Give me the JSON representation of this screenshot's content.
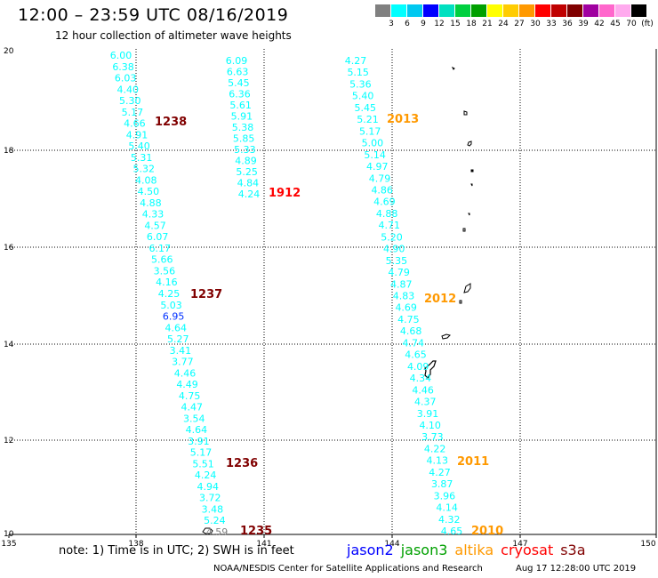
{
  "header": {
    "title": "12:00 – 23:59 UTC 08/16/2019",
    "subtitle": "12 hour collection of altimeter wave heights"
  },
  "legend": {
    "colors": [
      "#808080",
      "#00ffff",
      "#00c8f0",
      "#0000ff",
      "#00e0c0",
      "#00d040",
      "#00a000",
      "#ffff00",
      "#ffcc00",
      "#ff9900",
      "#ff0000",
      "#c00000",
      "#800000",
      "#a000a0",
      "#ff66cc",
      "#ffaaee",
      "#000000"
    ],
    "labels": [
      "3",
      "6",
      "9",
      "12",
      "15",
      "18",
      "21",
      "24",
      "27",
      "30",
      "33",
      "36",
      "39",
      "42",
      "45",
      "70",
      "(ft)"
    ]
  },
  "axes": {
    "lon_labels": [
      "135",
      "138",
      "141",
      "144",
      "147",
      "150"
    ],
    "lat_labels": [
      "20",
      "18",
      "16",
      "14",
      "12",
      "10"
    ]
  },
  "tracks": [
    {
      "name": "track-1238-1236",
      "values": [
        "6.00",
        "6.38",
        "6.03",
        "4.40",
        "5.30",
        "5.17",
        "4.66",
        "4.91",
        "5.40",
        "5.31",
        "5.32",
        "4.08",
        "4.50",
        "4.88",
        "4.33",
        "4.57",
        "6.07",
        "6.17",
        "5.66",
        "3.56",
        "4.16",
        "4.25",
        "5.03",
        "6.95",
        "4.64",
        "5.27",
        "3.41",
        "3.77",
        "4.46",
        "4.49",
        "4.75",
        "4.47",
        "3.54",
        "4.64",
        "3.91",
        "5.17",
        "5.51",
        "4.24",
        "4.94",
        "3.72",
        "3.48",
        "5.24",
        "4.59"
      ],
      "colors": [
        "#00ffff",
        "#00ffff",
        "#00ffff",
        "#00ffff",
        "#00ffff",
        "#00ffff",
        "#00ffff",
        "#00ffff",
        "#00ffff",
        "#00ffff",
        "#00ffff",
        "#00ffff",
        "#00ffff",
        "#00ffff",
        "#00ffff",
        "#00ffff",
        "#00ffff",
        "#00ffff",
        "#00ffff",
        "#00ffff",
        "#00ffff",
        "#00ffff",
        "#00ffff",
        "#0030ff",
        "#00ffff",
        "#00ffff",
        "#00ffff",
        "#00ffff",
        "#00ffff",
        "#00ffff",
        "#00ffff",
        "#00ffff",
        "#00ffff",
        "#00ffff",
        "#00ffff",
        "#00ffff",
        "#00ffff",
        "#00ffff",
        "#00ffff",
        "#00ffff",
        "#00ffff",
        "#00ffff",
        "#808080"
      ]
    },
    {
      "name": "track-1912",
      "values": [
        "6.09",
        "6.63",
        "5.45",
        "6.36",
        "5.61",
        "5.91",
        "5.38",
        "5.85",
        "5.33",
        "4.89",
        "5.25",
        "4.84",
        "4.24"
      ],
      "colors": [
        "#00ffff",
        "#00ffff",
        "#00ffff",
        "#00ffff",
        "#00ffff",
        "#00ffff",
        "#00ffff",
        "#00ffff",
        "#00ffff",
        "#00ffff",
        "#00ffff",
        "#00ffff",
        "#00ffff"
      ]
    },
    {
      "name": "track-2013-2010",
      "values": [
        "4.27",
        "5.15",
        "5.36",
        "5.40",
        "5.45",
        "5.21",
        "5.17",
        "5.00",
        "5.14",
        "4.97",
        "4.79",
        "4.86",
        "4.69",
        "4.88",
        "4.71",
        "5.20",
        "4.90",
        "5.35",
        "4.79",
        "4.87",
        "4.83",
        "4.69",
        "4.75",
        "4.68",
        "4.74",
        "4.65",
        "4.09",
        "4.34",
        "4.46",
        "4.37",
        "3.91",
        "4.10",
        "3.73",
        "4.22",
        "4.13",
        "4.27",
        "3.87",
        "3.96",
        "4.14",
        "4.32",
        "4.65"
      ],
      "colors": [
        "#00ffff",
        "#00ffff",
        "#00ffff",
        "#00ffff",
        "#00ffff",
        "#00ffff",
        "#00ffff",
        "#00ffff",
        "#00ffff",
        "#00ffff",
        "#00ffff",
        "#00ffff",
        "#00ffff",
        "#00ffff",
        "#00ffff",
        "#00ffff",
        "#00ffff",
        "#00ffff",
        "#00ffff",
        "#00ffff",
        "#00ffff",
        "#00ffff",
        "#00ffff",
        "#00ffff",
        "#00ffff",
        "#00ffff",
        "#00ffff",
        "#00ffff",
        "#00ffff",
        "#00ffff",
        "#00ffff",
        "#00ffff",
        "#00ffff",
        "#00ffff",
        "#00ffff",
        "#00ffff",
        "#00ffff",
        "#00ffff",
        "#00ffff",
        "#00ffff",
        "#00ffff"
      ]
    }
  ],
  "time_labels": [
    {
      "text": "1238",
      "color": "#800000"
    },
    {
      "text": "1237",
      "color": "#800000"
    },
    {
      "text": "1236",
      "color": "#800000"
    },
    {
      "text": "1235",
      "color": "#800000"
    },
    {
      "text": "1912",
      "color": "#ff0000"
    },
    {
      "text": "2013",
      "color": "#ff9900"
    },
    {
      "text": "2012",
      "color": "#ff9900"
    },
    {
      "text": "2011",
      "color": "#ff9900"
    },
    {
      "text": "2010",
      "color": "#ff9900"
    }
  ],
  "footer": {
    "note": "note: 1) Time is in UTC; 2) SWH is in feet",
    "satellites": [
      {
        "name": "jason2",
        "color": "#0000ff"
      },
      {
        "name": "jason3",
        "color": "#00a000"
      },
      {
        "name": "altika",
        "color": "#ff9900"
      },
      {
        "name": "cryosat",
        "color": "#ff0000"
      },
      {
        "name": "s3a",
        "color": "#800000"
      }
    ],
    "credit": "NOAA/NESDIS Center for Satellite Applications and Research",
    "timestamp": "Aug 17 12:28:00 UTC 2019"
  }
}
